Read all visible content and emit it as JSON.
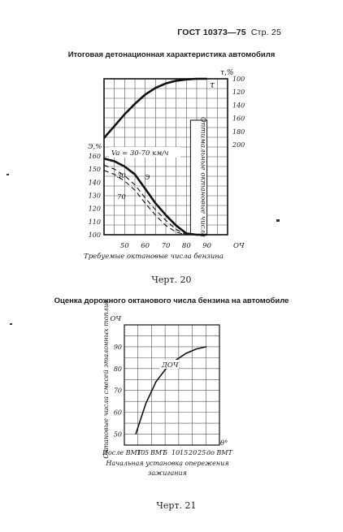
{
  "header": {
    "standard": "ГОСТ 10373—75",
    "page": "Стр. 25"
  },
  "figure1": {
    "title": "Итоговая детонационная характеристика автомобиля",
    "caption": "Черт. 20"
  },
  "figure2": {
    "title": "Оценка дорожного октанового числа бензина на автомобиле",
    "caption": "Черт. 21"
  },
  "chart_data": [
    {
      "type": "line",
      "xlabel": "Требуемые октановые числа бензина",
      "xunit": "ОЧ",
      "x_ticks": [
        "50",
        "60",
        "70",
        "80",
        "90"
      ],
      "xlim": [
        40,
        100
      ],
      "ylabel_left": "Э,%",
      "y_left_ticks": [
        "160",
        "150",
        "140",
        "130",
        "120",
        "110",
        "100"
      ],
      "ylim_left": [
        100,
        165
      ],
      "ylabel_right": "τ,%",
      "y_right_ticks": [
        "100",
        "120",
        "140",
        "160",
        "180",
        "200"
      ],
      "ylim_right": [
        100,
        200
      ],
      "vertical_band_label": "Оптимальные октановые числа",
      "annotation_speed": "Va = 30-70 км/ч",
      "series": [
        {
          "name": "τ",
          "axis": "right",
          "style": "solid-thick",
          "x": [
            40,
            45,
            50,
            55,
            60,
            65,
            70,
            75,
            80,
            85,
            90
          ],
          "y": [
            190,
            172,
            154,
            138,
            124,
            114,
            107,
            103,
            101,
            100,
            100
          ]
        },
        {
          "name": "Э",
          "axis": "left",
          "style": "solid-thick",
          "x": [
            40,
            45,
            50,
            55,
            60,
            65,
            70,
            75,
            80,
            85,
            90
          ],
          "y": [
            158,
            156,
            152,
            146,
            135,
            124,
            115,
            107,
            101,
            100,
            100
          ]
        },
        {
          "name": "30",
          "axis": "left",
          "style": "dashed",
          "x": [
            40,
            45,
            50,
            55,
            60,
            65,
            70,
            75,
            80,
            85
          ],
          "y": [
            153,
            150,
            145,
            138,
            128,
            119,
            111,
            104,
            100,
            100
          ]
        },
        {
          "name": "70",
          "axis": "left",
          "style": "dashed",
          "x": [
            40,
            45,
            50,
            55,
            60,
            65,
            70,
            75,
            80,
            85
          ],
          "y": [
            149,
            146,
            141,
            134,
            124,
            115,
            107,
            102,
            100,
            100
          ]
        }
      ]
    },
    {
      "type": "line",
      "ylabel": "Октановые числа смесей эталонных топлив",
      "yunit": "ОЧ",
      "y_ticks": [
        "50",
        "60",
        "70",
        "80",
        "90"
      ],
      "ylim": [
        45,
        100
      ],
      "xlabel_prefix": "После ВМТ",
      "x_ticks": [
        "10",
        "5",
        "ВМТ",
        "5",
        "10",
        "15",
        "20",
        "25"
      ],
      "x_suffix": "до ВМТ",
      "xunit": "θ°",
      "xlabel": "Начальная установка опережения зажигания",
      "series": [
        {
          "name": "ДОЧ",
          "x": [
            0,
            1,
            2,
            3,
            4,
            5,
            6,
            7
          ],
          "y": [
            50,
            64,
            74,
            80,
            84,
            87,
            89,
            90
          ]
        }
      ]
    }
  ]
}
